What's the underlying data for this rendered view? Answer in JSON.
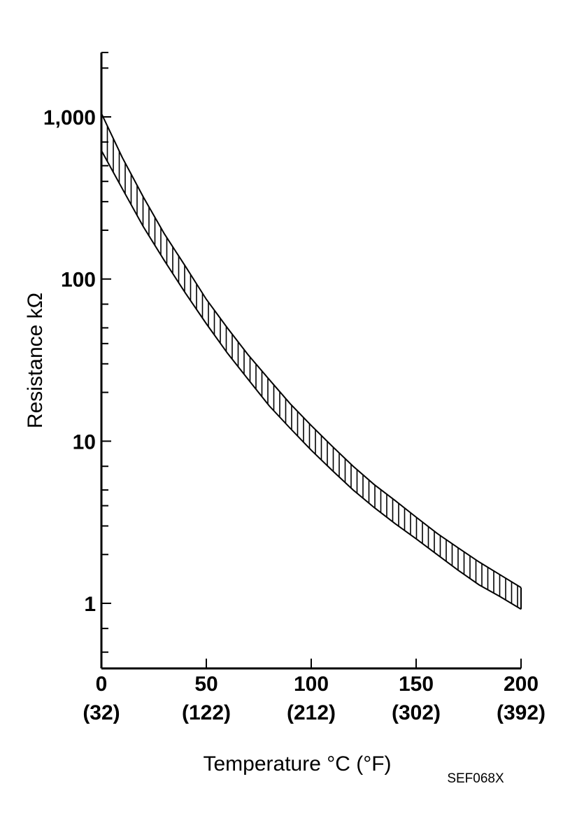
{
  "chart_data": {
    "type": "area",
    "xlabel": "Temperature °C (°F)",
    "ylabel": "Resistance kΩ",
    "figure_code": "SEF068X",
    "x_scale": "linear",
    "y_scale": "log",
    "xlim": [
      0,
      200
    ],
    "ylim": [
      0.4,
      2500
    ],
    "grid": false,
    "legend": "none",
    "x_ticks": [
      {
        "value": 0,
        "label": "0",
        "sublabel": "(32)"
      },
      {
        "value": 50,
        "label": "50",
        "sublabel": "(122)"
      },
      {
        "value": 100,
        "label": "100",
        "sublabel": "(212)"
      },
      {
        "value": 150,
        "label": "150",
        "sublabel": "(302)"
      },
      {
        "value": 200,
        "label": "200",
        "sublabel": "(392)"
      }
    ],
    "y_ticks": [
      {
        "value": 1,
        "label": "1"
      },
      {
        "value": 10,
        "label": "10"
      },
      {
        "value": 100,
        "label": "100"
      },
      {
        "value": 1000,
        "label": "1,000"
      }
    ],
    "y_minor_ticks": [
      0.5,
      0.7,
      2,
      3,
      4,
      5,
      7,
      20,
      30,
      40,
      50,
      70,
      200,
      300,
      400,
      500,
      700,
      2000
    ],
    "band": {
      "fill": "vertical-hatch",
      "upper": [
        {
          "x": 0,
          "y": 1050
        },
        {
          "x": 10,
          "y": 560
        },
        {
          "x": 20,
          "y": 320
        },
        {
          "x": 30,
          "y": 190
        },
        {
          "x": 40,
          "y": 120
        },
        {
          "x": 50,
          "y": 75
        },
        {
          "x": 60,
          "y": 50
        },
        {
          "x": 70,
          "y": 34
        },
        {
          "x": 80,
          "y": 24
        },
        {
          "x": 90,
          "y": 17
        },
        {
          "x": 100,
          "y": 12.5
        },
        {
          "x": 110,
          "y": 9.3
        },
        {
          "x": 120,
          "y": 7.0
        },
        {
          "x": 130,
          "y": 5.4
        },
        {
          "x": 140,
          "y": 4.3
        },
        {
          "x": 150,
          "y": 3.4
        },
        {
          "x": 160,
          "y": 2.7
        },
        {
          "x": 170,
          "y": 2.2
        },
        {
          "x": 180,
          "y": 1.8
        },
        {
          "x": 190,
          "y": 1.5
        },
        {
          "x": 200,
          "y": 1.25
        }
      ],
      "lower": [
        {
          "x": 0,
          "y": 620
        },
        {
          "x": 10,
          "y": 360
        },
        {
          "x": 20,
          "y": 210
        },
        {
          "x": 30,
          "y": 130
        },
        {
          "x": 40,
          "y": 82
        },
        {
          "x": 50,
          "y": 53
        },
        {
          "x": 60,
          "y": 35
        },
        {
          "x": 70,
          "y": 24
        },
        {
          "x": 80,
          "y": 16.5
        },
        {
          "x": 90,
          "y": 12
        },
        {
          "x": 100,
          "y": 8.8
        },
        {
          "x": 110,
          "y": 6.6
        },
        {
          "x": 120,
          "y": 5.0
        },
        {
          "x": 130,
          "y": 3.9
        },
        {
          "x": 140,
          "y": 3.1
        },
        {
          "x": 150,
          "y": 2.5
        },
        {
          "x": 160,
          "y": 2.0
        },
        {
          "x": 170,
          "y": 1.6
        },
        {
          "x": 180,
          "y": 1.3
        },
        {
          "x": 190,
          "y": 1.1
        },
        {
          "x": 200,
          "y": 0.92
        }
      ]
    }
  }
}
